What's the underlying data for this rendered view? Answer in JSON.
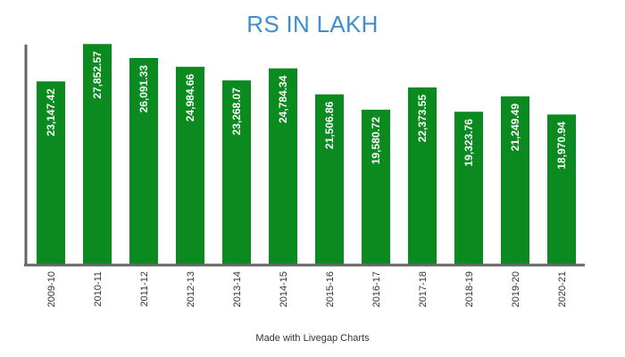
{
  "colors": {
    "title": "#3d8fd1",
    "bar": "#0b8a1f",
    "axis": "#666666",
    "label": "#ffffff",
    "tick": "#333333"
  },
  "chart_data": {
    "type": "bar",
    "title": "RS IN LAKH",
    "xlabel": "",
    "ylabel": "",
    "categories": [
      "2009-10",
      "2010-11",
      "2011-12",
      "2012-13",
      "2013-14",
      "2014-15",
      "2015-16",
      "2016-17",
      "2017-18",
      "2018-19",
      "2019-20",
      "2020-21"
    ],
    "values": [
      23147.42,
      27852.57,
      26091.33,
      24984.66,
      23268.07,
      24784.34,
      21506.86,
      19580.72,
      22373.55,
      19323.76,
      21249.49,
      18970.94
    ],
    "data_labels": [
      "23,147.42",
      "27,852.57",
      "26,091.33",
      "24,984.66",
      "23,268.07",
      "24,784.34",
      "21,506.86",
      "19,580.72",
      "22,373.55",
      "19,323.76",
      "21,249.49",
      "18,970.94"
    ],
    "ylim": [
      0,
      28000
    ],
    "grid": false,
    "legend": "none"
  },
  "footer": {
    "credit": "Made with Livegap Charts"
  }
}
